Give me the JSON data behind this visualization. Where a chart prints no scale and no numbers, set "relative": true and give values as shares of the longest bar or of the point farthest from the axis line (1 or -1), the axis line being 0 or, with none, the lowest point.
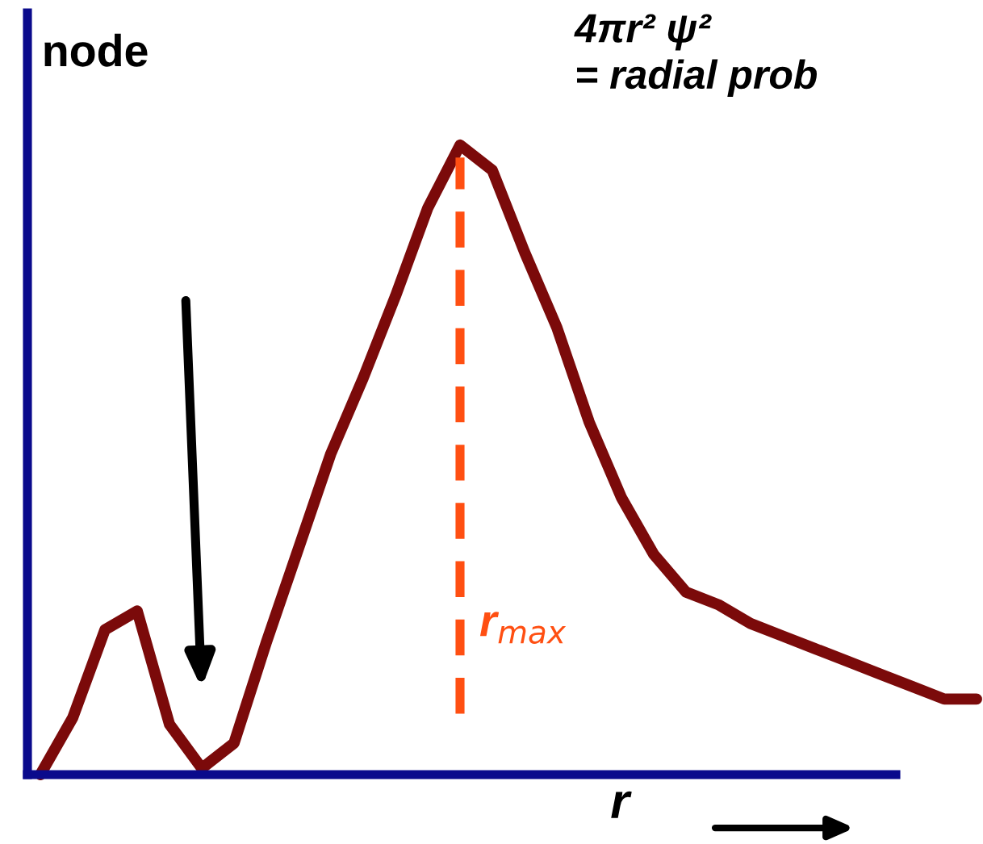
{
  "chart_data": {
    "type": "line",
    "title": "4πr² ψ²\n= radial prob",
    "xlabel": "r",
    "relative": true,
    "categories": [
      null,
      null,
      null,
      null,
      null,
      null,
      null,
      null,
      null,
      null,
      null,
      null,
      null,
      null,
      null,
      null,
      null,
      null,
      null,
      null,
      null,
      null,
      null,
      null,
      null,
      null,
      null,
      null,
      null,
      null
    ],
    "series": [
      {
        "color": "#7b0a0a",
        "values": [
          0.0,
          0.09,
          0.23,
          0.26,
          0.08,
          0.01,
          0.05,
          0.21,
          0.36,
          0.51,
          0.63,
          0.76,
          0.9,
          1.0,
          0.96,
          0.83,
          0.71,
          0.56,
          0.44,
          0.35,
          0.29,
          0.27,
          0.24,
          0.22,
          0.2,
          0.18,
          0.16,
          0.14,
          0.12,
          0.12
        ]
      }
    ],
    "annotations": [
      "node",
      "r$_{max}$"
    ],
    "marker": "none",
    "line_style": "solid",
    "grid": false,
    "legend": false
  }
}
